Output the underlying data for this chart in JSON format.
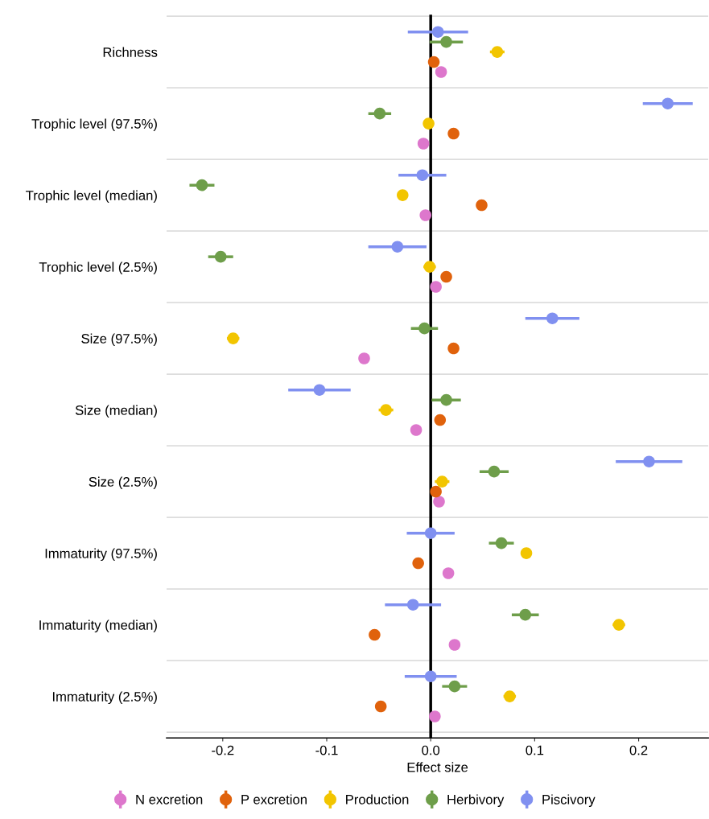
{
  "chart_data": {
    "type": "scatter",
    "orientation": "horizontal",
    "xlabel": "Effect size",
    "categories": [
      "Richness",
      "Trophic level (97.5%)",
      "Trophic level (median)",
      "Trophic level (2.5%)",
      "Size (97.5%)",
      "Size (median)",
      "Size (2.5%)",
      "Immaturity (97.5%)",
      "Immaturity (median)",
      "Immaturity (2.5%)"
    ],
    "series": [
      {
        "name": "N excretion",
        "color": "#dd77cc",
        "values": [
          0.01,
          -0.007,
          -0.005,
          0.005,
          -0.064,
          -0.014,
          0.008,
          0.017,
          0.023,
          0.004
        ]
      },
      {
        "name": "P excretion",
        "color": "#e0620c",
        "values": [
          0.003,
          0.022,
          0.049,
          0.015,
          0.022,
          0.009,
          0.005,
          -0.012,
          -0.054,
          -0.048
        ]
      },
      {
        "name": "Production",
        "color": "#f2c500",
        "values": [
          0.064,
          -0.002,
          -0.027,
          -0.001,
          -0.19,
          -0.043,
          0.011,
          0.092,
          0.181,
          0.076
        ],
        "errors": [
          0.007,
          0.005,
          0.005,
          0.006,
          0.006,
          0.007,
          0.007,
          0.005,
          0.006,
          0.006
        ]
      },
      {
        "name": "Herbivory",
        "color": "#6e9e4a",
        "values": [
          0.015,
          -0.049,
          -0.22,
          -0.202,
          -0.006,
          0.015,
          0.061,
          0.068,
          0.091,
          0.023
        ],
        "errors": [
          0.016,
          0.011,
          0.012,
          0.012,
          0.013,
          0.014,
          0.014,
          0.012,
          0.013,
          0.012
        ]
      },
      {
        "name": "Piscivory",
        "color": "#8090f0",
        "values": [
          0.007,
          0.228,
          -0.008,
          -0.032,
          0.117,
          -0.107,
          0.21,
          0.0,
          -0.017,
          0.0
        ],
        "errors": [
          0.029,
          0.024,
          0.023,
          0.028,
          0.026,
          0.03,
          0.032,
          0.023,
          0.027,
          0.025
        ]
      }
    ],
    "xlim": [
      -0.254,
      0.267
    ],
    "xticks": [
      -0.2,
      -0.1,
      {
        "value": 0,
        "label": "0.0"
      },
      0.1,
      0.2
    ],
    "ref_lines": [
      {
        "axis": "x",
        "value": 0,
        "color": "#000000",
        "line_style": "solid"
      }
    ],
    "grid": "y",
    "legend": "bottom",
    "marker": "circle"
  }
}
